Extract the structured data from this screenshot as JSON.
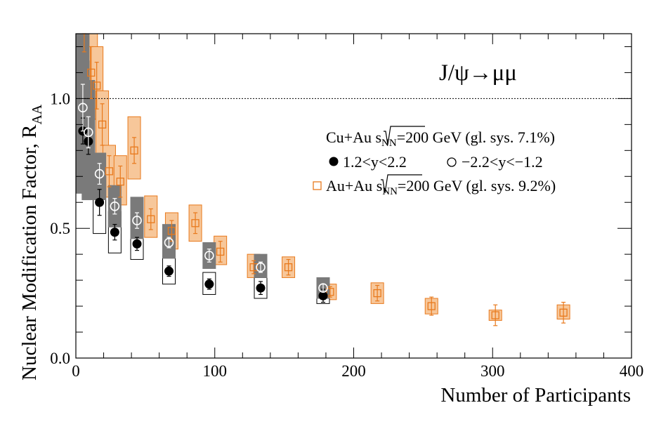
{
  "chart_data": {
    "type": "scatter",
    "title": "J/ψ→μμ",
    "xlabel": "Number of Participants",
    "ylabel": "Nuclear Modification Factor, R",
    "ylabel_sub": "AA",
    "xlim": [
      0,
      400
    ],
    "ylim": [
      0,
      1.25
    ],
    "x_ticks": [
      0,
      100,
      200,
      300,
      400
    ],
    "x_tick_labels": [
      "0",
      "100",
      "200",
      "300",
      "400"
    ],
    "y_ticks": [
      0,
      0.5,
      1.0
    ],
    "y_tick_labels": [
      "0.0",
      "0.5",
      "1.0"
    ],
    "reference_line": 1.0,
    "legend": {
      "cuau_header_pre": "Cu+Au ",
      "cuau_header_sqrt": "s",
      "cuau_header_sub": "NN",
      "cuau_header_post": "=200 GeV (gl. sys. 7.1%)",
      "forward_label": "1.2<y<2.2",
      "backward_label": "−2.2<y<−1.2",
      "auau_pre": "Au+Au ",
      "auau_sqrt": "s",
      "auau_sub": "NN",
      "auau_post": "=200 GeV (gl. sys. 9.2%)"
    },
    "colors": {
      "auau": "#e8791c",
      "auau_fill": "#f7c79a",
      "cuau_forward_box": "#ffffff",
      "cuau_backward_box": "#7a7a7a"
    },
    "series": [
      {
        "name": "1.2<y<2.2",
        "marker": "filled-circle",
        "points": [
          {
            "x": 5,
            "y": 0.875,
            "stat": 0.05,
            "sys_lo": 0.12,
            "sys_hi": 0.27
          },
          {
            "x": 9,
            "y": 0.835,
            "stat": 0.05,
            "sys_lo": 0.2,
            "sys_hi": 0.22
          },
          {
            "x": 17,
            "y": 0.6,
            "stat": 0.05,
            "sys_lo": 0.12,
            "sys_hi": 0.1
          },
          {
            "x": 28,
            "y": 0.485,
            "stat": 0.03,
            "sys_lo": 0.08,
            "sys_hi": 0.08
          },
          {
            "x": 44,
            "y": 0.44,
            "stat": 0.025,
            "sys_lo": 0.06,
            "sys_hi": 0.07
          },
          {
            "x": 67,
            "y": 0.335,
            "stat": 0.02,
            "sys_lo": 0.05,
            "sys_hi": 0.05
          },
          {
            "x": 96,
            "y": 0.285,
            "stat": 0.02,
            "sys_lo": 0.04,
            "sys_hi": 0.045
          },
          {
            "x": 133,
            "y": 0.27,
            "stat": 0.025,
            "sys_lo": 0.04,
            "sys_hi": 0.04
          },
          {
            "x": 178,
            "y": 0.24,
            "stat": 0.025,
            "sys_lo": 0.03,
            "sys_hi": 0.035
          }
        ]
      },
      {
        "name": "−2.2<y<−1.2",
        "marker": "open-circle",
        "points": [
          {
            "x": 5,
            "y": 0.965,
            "stat": 0.09,
            "sys_lo": 0.33,
            "sys_hi": 0.3
          },
          {
            "x": 9,
            "y": 0.87,
            "stat": 0.06,
            "sys_lo": 0.26,
            "sys_hi": 0.2
          },
          {
            "x": 17,
            "y": 0.71,
            "stat": 0.04,
            "sys_lo": 0.1,
            "sys_hi": 0.08
          },
          {
            "x": 28,
            "y": 0.585,
            "stat": 0.03,
            "sys_lo": 0.08,
            "sys_hi": 0.08
          },
          {
            "x": 44,
            "y": 0.53,
            "stat": 0.03,
            "sys_lo": 0.07,
            "sys_hi": 0.09
          },
          {
            "x": 67,
            "y": 0.445,
            "stat": 0.02,
            "sys_lo": 0.06,
            "sys_hi": 0.07
          },
          {
            "x": 96,
            "y": 0.395,
            "stat": 0.025,
            "sys_lo": 0.05,
            "sys_hi": 0.05
          },
          {
            "x": 133,
            "y": 0.35,
            "stat": 0.02,
            "sys_lo": 0.04,
            "sys_hi": 0.05
          },
          {
            "x": 178,
            "y": 0.27,
            "stat": 0.015,
            "sys_lo": 0.04,
            "sys_hi": 0.04
          }
        ]
      },
      {
        "name": "Au+Au",
        "marker": "open-square",
        "points": [
          {
            "x": 6,
            "y": 1.3,
            "stat": 0.12,
            "sys_lo": 0.18,
            "sys_hi": 0.2
          },
          {
            "x": 11,
            "y": 1.1,
            "stat": 0.1,
            "sys_lo": 0.14,
            "sys_hi": 0.16
          },
          {
            "x": 15,
            "y": 1.05,
            "stat": 0.09,
            "sys_lo": 0.13,
            "sys_hi": 0.15
          },
          {
            "x": 19,
            "y": 0.9,
            "stat": 0.08,
            "sys_lo": 0.12,
            "sys_hi": 0.13
          },
          {
            "x": 24,
            "y": 0.72,
            "stat": 0.06,
            "sys_lo": 0.1,
            "sys_hi": 0.1
          },
          {
            "x": 32,
            "y": 0.68,
            "stat": 0.06,
            "sys_lo": 0.09,
            "sys_hi": 0.1
          },
          {
            "x": 42,
            "y": 0.8,
            "stat": 0.05,
            "sys_lo": 0.11,
            "sys_hi": 0.13
          },
          {
            "x": 54,
            "y": 0.535,
            "stat": 0.04,
            "sys_lo": 0.07,
            "sys_hi": 0.09
          },
          {
            "x": 69,
            "y": 0.49,
            "stat": 0.04,
            "sys_lo": 0.07,
            "sys_hi": 0.07
          },
          {
            "x": 86,
            "y": 0.52,
            "stat": 0.04,
            "sys_lo": 0.07,
            "sys_hi": 0.07
          },
          {
            "x": 104,
            "y": 0.41,
            "stat": 0.04,
            "sys_lo": 0.05,
            "sys_hi": 0.06
          },
          {
            "x": 128,
            "y": 0.35,
            "stat": 0.025,
            "sys_lo": 0.04,
            "sys_hi": 0.05
          },
          {
            "x": 153,
            "y": 0.35,
            "stat": 0.03,
            "sys_lo": 0.04,
            "sys_hi": 0.04
          },
          {
            "x": 183,
            "y": 0.255,
            "stat": 0.02,
            "sys_lo": 0.03,
            "sys_hi": 0.03
          },
          {
            "x": 217,
            "y": 0.25,
            "stat": 0.03,
            "sys_lo": 0.04,
            "sys_hi": 0.04
          },
          {
            "x": 256,
            "y": 0.2,
            "stat": 0.035,
            "sys_lo": 0.03,
            "sys_hi": 0.03
          },
          {
            "x": 302,
            "y": 0.165,
            "stat": 0.04,
            "sys_lo": 0.02,
            "sys_hi": 0.02
          },
          {
            "x": 351,
            "y": 0.175,
            "stat": 0.04,
            "sys_lo": 0.025,
            "sys_hi": 0.03
          }
        ]
      }
    ]
  }
}
